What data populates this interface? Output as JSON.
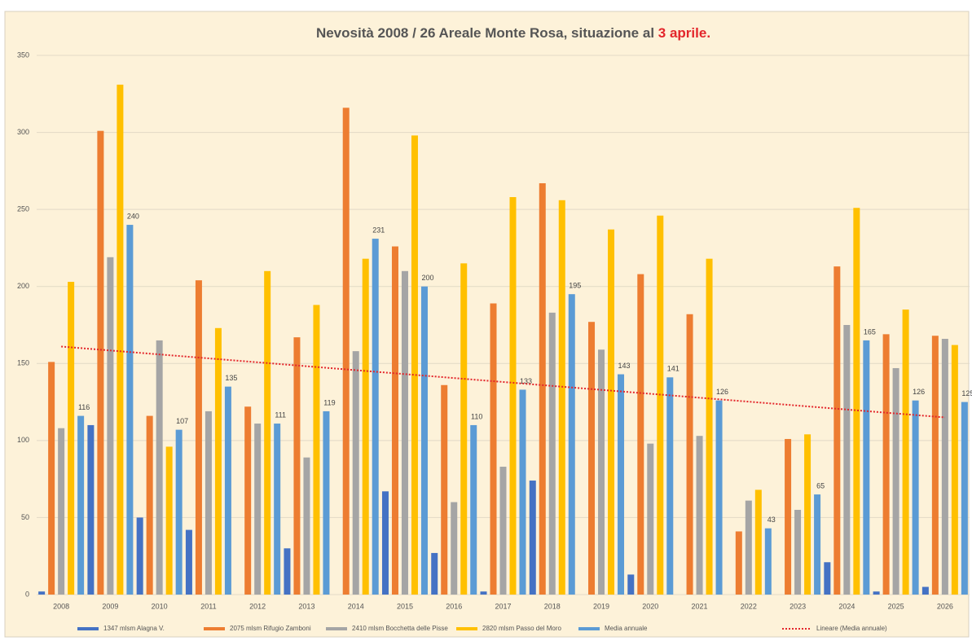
{
  "chart_data": {
    "type": "bar",
    "title": [
      "Nevosità 2008 / 26 Areale Monte Rosa, situazione al",
      "3 aprile."
    ],
    "categories": [
      "2008",
      "2009",
      "2010",
      "2011",
      "2012",
      "2013",
      "2014",
      "2015",
      "2016",
      "2017",
      "2018",
      "2019",
      "2020",
      "2021",
      "2022",
      "2023",
      "2024",
      "2025",
      "2026"
    ],
    "series": [
      {
        "name": "1347 mlsm Alagna V.",
        "color": "#4472c4",
        "values": [
          2,
          110,
          50,
          42,
          0,
          30,
          0,
          67,
          27,
          2,
          74,
          0,
          13,
          0,
          0,
          0,
          21,
          2,
          5
        ]
      },
      {
        "name": "2075 mlsm Rifugio Zamboni",
        "color": "#ed7d31",
        "values": [
          151,
          301,
          116,
          204,
          122,
          167,
          316,
          226,
          136,
          189,
          267,
          177,
          208,
          182,
          41,
          101,
          213,
          169,
          168
        ]
      },
      {
        "name": "2410 mlsm Bocchetta delle Pisse",
        "color": "#a5a5a5",
        "values": [
          108,
          219,
          165,
          119,
          111,
          89,
          158,
          210,
          60,
          83,
          183,
          159,
          98,
          103,
          61,
          55,
          175,
          147,
          166
        ]
      },
      {
        "name": "2820 mlsm Passo del Moro",
        "color": "#ffc000",
        "values": [
          203,
          331,
          96,
          173,
          210,
          188,
          218,
          298,
          215,
          258,
          256,
          237,
          246,
          218,
          68,
          104,
          251,
          185,
          162
        ]
      },
      {
        "name": "Media annuale",
        "color": "#5b9bd5",
        "labels": true,
        "values": [
          116,
          240,
          107,
          135,
          111,
          119,
          231,
          200,
          110,
          133,
          195,
          143,
          141,
          126,
          43,
          65,
          165,
          126,
          125
        ]
      }
    ],
    "trendline": {
      "name": "Lineare (Media annuale)",
      "color": "#e3262b",
      "start": 161,
      "end": 115
    },
    "ylim": [
      0,
      350
    ],
    "yticks": [
      0,
      50,
      100,
      150,
      200,
      250,
      300,
      350
    ],
    "grid": true
  }
}
